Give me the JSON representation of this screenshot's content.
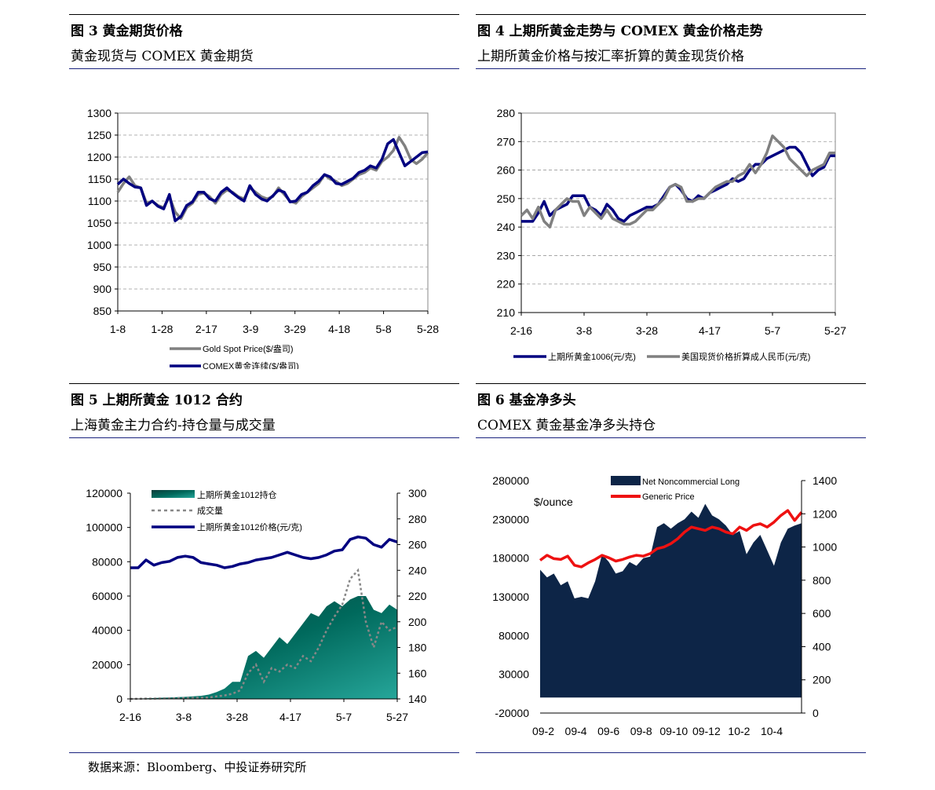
{
  "figures": [
    {
      "title": "图 3  黄金期货价格",
      "subtitle": "黄金现货与 COMEX 黄金期货",
      "chart_data": {
        "type": "line",
        "x_ticks": [
          "1-8",
          "1-28",
          "2-17",
          "3-9",
          "3-29",
          "4-18",
          "5-8",
          "5-28"
        ],
        "y_ticks": [
          "1300",
          "1250",
          "1200",
          "1150",
          "1100",
          "1050",
          "1000",
          "950",
          "900",
          "850"
        ],
        "ylim": [
          850,
          1300
        ],
        "grid": true,
        "legend_position": "bottom",
        "series": [
          {
            "name": "Gold Spot Price($/盎司)",
            "color": "#808080",
            "values": [
              1120,
              1140,
              1155,
              1135,
              1130,
              1095,
              1100,
              1090,
              1085,
              1110,
              1075,
              1060,
              1085,
              1095,
              1115,
              1118,
              1110,
              1095,
              1115,
              1125,
              1120,
              1110,
              1105,
              1130,
              1120,
              1110,
              1105,
              1110,
              1130,
              1115,
              1100,
              1095,
              1110,
              1120,
              1130,
              1140,
              1160,
              1150,
              1145,
              1135,
              1140,
              1150,
              1160,
              1165,
              1175,
              1170,
              1190,
              1200,
              1215,
              1245,
              1225,
              1195,
              1185,
              1195,
              1210
            ]
          },
          {
            "name": "COMEX黄金连续($/盎司)",
            "color": "#000080",
            "values": [
              1138,
              1150,
              1140,
              1132,
              1130,
              1090,
              1100,
              1088,
              1082,
              1115,
              1055,
              1065,
              1090,
              1098,
              1120,
              1120,
              1105,
              1100,
              1120,
              1130,
              1118,
              1108,
              1100,
              1135,
              1115,
              1105,
              1100,
              1112,
              1125,
              1120,
              1098,
              1100,
              1115,
              1120,
              1135,
              1145,
              1160,
              1155,
              1140,
              1138,
              1145,
              1152,
              1165,
              1170,
              1180,
              1175,
              1195,
              1230,
              1240,
              1210,
              1180,
              1190,
              1200,
              1210,
              1212
            ]
          }
        ]
      }
    },
    {
      "title": "图 4  上期所黄金走势与 COMEX 黄金价格走势",
      "subtitle": "上期所黄金价格与按汇率折算的黄金现货价格",
      "chart_data": {
        "type": "line",
        "x_ticks": [
          "2-16",
          "3-8",
          "3-28",
          "4-17",
          "5-7",
          "5-27"
        ],
        "y_ticks": [
          "280",
          "270",
          "260",
          "250",
          "240",
          "230",
          "220",
          "210"
        ],
        "ylim": [
          210,
          280
        ],
        "grid": true,
        "legend_position": "bottom",
        "series": [
          {
            "name": "上期所黄金1006(元/克)",
            "color": "#000080",
            "values": [
              242,
              242,
              242,
              245,
              249,
              244,
              246,
              247,
              248,
              251,
              251,
              251,
              247,
              246,
              244,
              248,
              246,
              243,
              242,
              244,
              245,
              246,
              247,
              247,
              248,
              251,
              254,
              255,
              253,
              250,
              249,
              251,
              250,
              252,
              253,
              254,
              255,
              257,
              256,
              257,
              260,
              262,
              262,
              264,
              265,
              266,
              267,
              268,
              268,
              266,
              262,
              258,
              260,
              261,
              265,
              265
            ]
          },
          {
            "name": "美国现货价格折算成人民币(元/克)",
            "color": "#808080",
            "values": [
              244,
              246,
              243,
              247,
              242,
              240,
              246,
              248,
              250,
              249,
              249,
              244,
              247,
              245,
              243,
              246,
              243,
              242,
              241,
              241,
              242,
              244,
              246,
              246,
              248,
              250,
              254,
              255,
              254,
              249,
              249,
              250,
              250,
              252,
              254,
              255,
              256,
              256,
              258,
              259,
              262,
              259,
              262,
              266,
              272,
              270,
              268,
              264,
              262,
              260,
              258,
              260,
              261,
              262,
              266,
              266
            ]
          }
        ]
      }
    },
    {
      "title": "图 5  上期所黄金 1012 合约",
      "subtitle": "上海黄金主力合约-持仓量与成交量",
      "chart_data": {
        "type": "area",
        "x_ticks": [
          "2-16",
          "3-8",
          "3-28",
          "4-17",
          "5-7",
          "5-27"
        ],
        "y_ticks_left": [
          "120000",
          "100000",
          "80000",
          "60000",
          "40000",
          "20000",
          "0"
        ],
        "y_ticks_right": [
          "300",
          "280",
          "260",
          "240",
          "220",
          "200",
          "180",
          "160",
          "140"
        ],
        "ylim_left": [
          0,
          120000
        ],
        "ylim_right": [
          140,
          300
        ],
        "legend_position": "top-left",
        "series": [
          {
            "name": "上期所黄金1012持仓",
            "axis": "left",
            "color": "#00796b",
            "values": [
              0,
              200,
              300,
              500,
              700,
              800,
              1000,
              1200,
              1500,
              1800,
              2500,
              4000,
              6000,
              10000,
              10000,
              25000,
              28000,
              24000,
              30000,
              36000,
              32000,
              38000,
              44000,
              50000,
              48000,
              54000,
              57000,
              54000,
              58000,
              60000,
              60000,
              52000,
              50000,
              55000,
              52000
            ]
          },
          {
            "name": "成交量",
            "axis": "left",
            "color": "#888888",
            "values": [
              0,
              100,
              200,
              200,
              300,
              400,
              400,
              500,
              600,
              700,
              800,
              1500,
              2000,
              3000,
              5000,
              15000,
              20000,
              10000,
              18000,
              16000,
              20000,
              18000,
              25000,
              22000,
              30000,
              40000,
              48000,
              55000,
              70000,
              75000,
              45000,
              30000,
              45000,
              40000,
              42000
            ]
          },
          {
            "name": "上期所黄金1012价格(元/克)",
            "axis": "right",
            "color": "#000080",
            "values": [
              242,
              242,
              248,
              244,
              246,
              247,
              250,
              251,
              250,
              246,
              245,
              244,
              242,
              243,
              245,
              246,
              248,
              249,
              250,
              252,
              254,
              252,
              250,
              249,
              250,
              252,
              255,
              256,
              264,
              266,
              265,
              260,
              258,
              264,
              262
            ]
          }
        ]
      }
    },
    {
      "title": "图 6  基金净多头",
      "subtitle": "COMEX 黄金基金净多头持仓",
      "chart_data": {
        "type": "area",
        "x_ticks": [
          "09-2",
          "09-4",
          "09-6",
          "09-8",
          "09-10",
          "09-12",
          "10-2",
          "10-4"
        ],
        "y_ticks_left": [
          "280000",
          "230000",
          "180000",
          "130000",
          "80000",
          "30000",
          "-20000"
        ],
        "y_ticks_right": [
          "1400",
          "1200",
          "1000",
          "800",
          "600",
          "400",
          "200",
          "0"
        ],
        "ylim_left": [
          -20000,
          280000
        ],
        "ylim_right": [
          0,
          1400
        ],
        "annotation": "$/ounce",
        "legend_position": "top",
        "series": [
          {
            "name": "Net Noncommercial Long",
            "axis": "left",
            "color": "#0d2547",
            "values": [
              165000,
              155000,
              160000,
              145000,
              150000,
              128000,
              130000,
              128000,
              150000,
              185000,
              175000,
              160000,
              163000,
              175000,
              170000,
              180000,
              182000,
              220000,
              225000,
              218000,
              225000,
              230000,
              240000,
              232000,
              250000,
              235000,
              230000,
              222000,
              210000,
              215000,
              185000,
              200000,
              210000,
              190000,
              170000,
              200000,
              218000,
              222000,
              225000
            ]
          },
          {
            "name": "Generic Price",
            "axis": "right",
            "color": "#ee1111",
            "values": [
              920,
              950,
              930,
              925,
              945,
              890,
              880,
              905,
              925,
              950,
              935,
              915,
              925,
              940,
              950,
              945,
              960,
              990,
              1000,
              1020,
              1050,
              1090,
              1120,
              1110,
              1100,
              1120,
              1110,
              1090,
              1080,
              1120,
              1100,
              1130,
              1140,
              1120,
              1150,
              1190,
              1220,
              1160,
              1210
            ]
          }
        ]
      }
    }
  ],
  "source": "数据来源：Bloomberg、中投证券研究所"
}
